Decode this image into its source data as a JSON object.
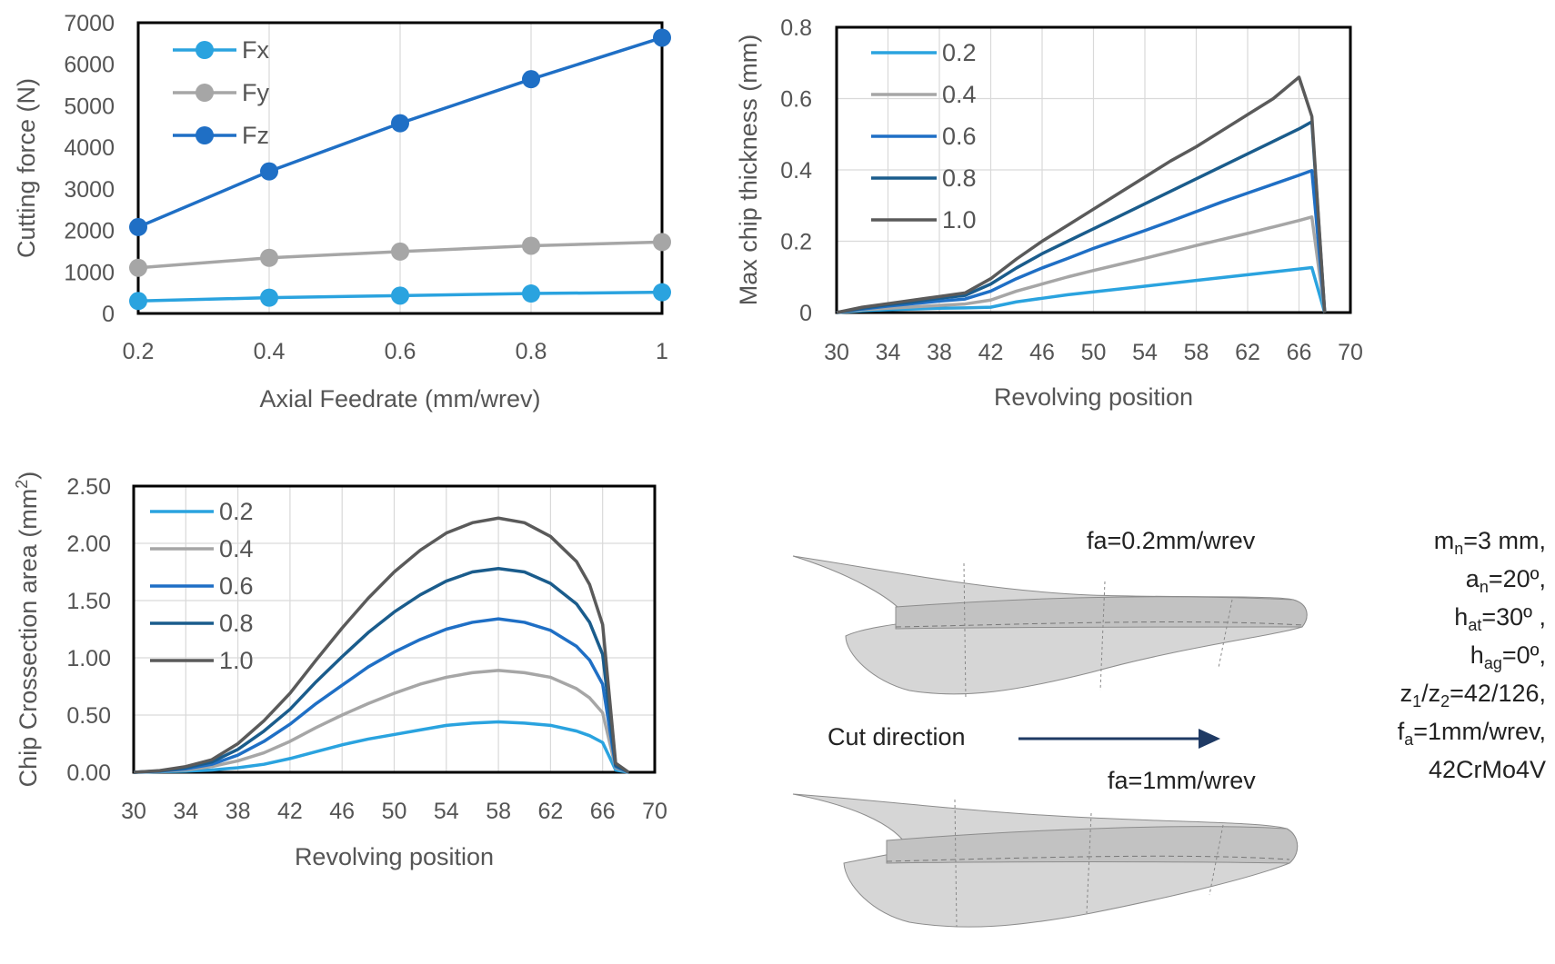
{
  "chart_data": [
    {
      "type": "line",
      "xlabel": "Axial Feedrate (mm/wrev)",
      "ylabel": "Cutting force (N)",
      "x": [
        0.2,
        0.4,
        0.6,
        0.8,
        1
      ],
      "x_tick_labels": [
        "0.2",
        "0.4",
        "0.6",
        "0.8",
        "1"
      ],
      "xlim": [
        0.2,
        1
      ],
      "ylim": [
        0,
        7000
      ],
      "y_ticks": [
        0,
        1000,
        2000,
        3000,
        4000,
        5000,
        6000,
        7000
      ],
      "grid": true,
      "legend": "top-left",
      "series": [
        {
          "name": "Fx",
          "color": "#2aa3df",
          "values": [
            300,
            380,
            430,
            480,
            510
          ]
        },
        {
          "name": "Fy",
          "color": "#a6a6a6",
          "values": [
            1100,
            1340,
            1490,
            1630,
            1720
          ]
        },
        {
          "name": "Fz",
          "color": "#1f6fc5",
          "values": [
            2080,
            3420,
            4580,
            5640,
            6640
          ]
        }
      ]
    },
    {
      "type": "line",
      "xlabel": "Revolving position",
      "ylabel": "Max chip thickness (mm)",
      "x": [
        30,
        32,
        34,
        36,
        38,
        40,
        42,
        44,
        46,
        48,
        50,
        52,
        54,
        56,
        58,
        60,
        62,
        64,
        66,
        67,
        68
      ],
      "x_ticks": [
        30,
        34,
        38,
        42,
        46,
        50,
        54,
        58,
        62,
        66,
        70
      ],
      "xlim": [
        30,
        70
      ],
      "ylim": [
        0,
        0.8
      ],
      "y_ticks": [
        0,
        0.2,
        0.4,
        0.6,
        0.8
      ],
      "y_tick_labels": [
        "0",
        "0.2",
        "0.4",
        "0.6",
        "0.8"
      ],
      "grid": true,
      "legend": "top-left",
      "series": [
        {
          "name": "0.2",
          "color": "#2aa3df",
          "values": [
            0.0,
            0.005,
            0.008,
            0.01,
            0.012,
            0.013,
            0.015,
            0.03,
            0.04,
            0.05,
            0.058,
            0.066,
            0.074,
            0.082,
            0.09,
            0.098,
            0.106,
            0.114,
            0.122,
            0.126,
            0.0
          ]
        },
        {
          "name": "0.4",
          "color": "#a6a6a6",
          "values": [
            0.0,
            0.008,
            0.012,
            0.016,
            0.02,
            0.024,
            0.035,
            0.06,
            0.08,
            0.1,
            0.118,
            0.135,
            0.152,
            0.17,
            0.188,
            0.205,
            0.222,
            0.24,
            0.258,
            0.268,
            0.0
          ]
        },
        {
          "name": "0.6",
          "color": "#1f6fc5",
          "values": [
            0.0,
            0.01,
            0.018,
            0.025,
            0.032,
            0.038,
            0.06,
            0.095,
            0.125,
            0.152,
            0.18,
            0.205,
            0.23,
            0.256,
            0.283,
            0.31,
            0.335,
            0.36,
            0.385,
            0.398,
            0.0
          ]
        },
        {
          "name": "0.8",
          "color": "#1a5c8c",
          "values": [
            0.0,
            0.012,
            0.022,
            0.03,
            0.04,
            0.048,
            0.08,
            0.125,
            0.165,
            0.2,
            0.235,
            0.27,
            0.305,
            0.34,
            0.375,
            0.41,
            0.445,
            0.48,
            0.515,
            0.535,
            0.0
          ]
        },
        {
          "name": "1.0",
          "color": "#5a5a5a",
          "values": [
            0.0,
            0.015,
            0.025,
            0.035,
            0.045,
            0.055,
            0.095,
            0.15,
            0.2,
            0.245,
            0.29,
            0.335,
            0.38,
            0.425,
            0.465,
            0.51,
            0.555,
            0.6,
            0.66,
            0.55,
            0.0
          ]
        }
      ]
    },
    {
      "type": "line",
      "xlabel": "Revolving position",
      "ylabel": "Chip Crossection area (mm",
      "ylabel_sup": "2",
      "ylabel_end": ")",
      "x": [
        30,
        32,
        34,
        36,
        38,
        40,
        42,
        44,
        46,
        48,
        50,
        52,
        54,
        56,
        58,
        60,
        62,
        64,
        65,
        66,
        67,
        68
      ],
      "x_ticks": [
        30,
        34,
        38,
        42,
        46,
        50,
        54,
        58,
        62,
        66,
        70
      ],
      "xlim": [
        30,
        70
      ],
      "ylim": [
        0,
        2.5
      ],
      "y_ticks": [
        0,
        0.5,
        1.0,
        1.5,
        2.0,
        2.5
      ],
      "y_tick_labels": [
        "0.00",
        "0.50",
        "1.00",
        "1.50",
        "2.00",
        "2.50"
      ],
      "grid": true,
      "legend": "top-left",
      "series": [
        {
          "name": "0.2",
          "color": "#2aa3df",
          "values": [
            0.0,
            0.005,
            0.01,
            0.02,
            0.04,
            0.07,
            0.12,
            0.18,
            0.24,
            0.29,
            0.33,
            0.37,
            0.41,
            0.43,
            0.44,
            0.43,
            0.41,
            0.36,
            0.32,
            0.26,
            0.02,
            0.0
          ]
        },
        {
          "name": "0.4",
          "color": "#a6a6a6",
          "values": [
            0.0,
            0.008,
            0.02,
            0.05,
            0.1,
            0.17,
            0.27,
            0.39,
            0.5,
            0.6,
            0.69,
            0.77,
            0.83,
            0.87,
            0.89,
            0.87,
            0.83,
            0.73,
            0.65,
            0.52,
            0.04,
            0.0
          ]
        },
        {
          "name": "0.6",
          "color": "#1f6fc5",
          "values": [
            0.0,
            0.01,
            0.03,
            0.07,
            0.15,
            0.27,
            0.42,
            0.6,
            0.76,
            0.92,
            1.05,
            1.16,
            1.25,
            1.31,
            1.34,
            1.31,
            1.24,
            1.1,
            0.98,
            0.77,
            0.05,
            0.0
          ]
        },
        {
          "name": "0.8",
          "color": "#1a5c8c",
          "values": [
            0.0,
            0.012,
            0.04,
            0.09,
            0.2,
            0.36,
            0.55,
            0.79,
            1.01,
            1.22,
            1.4,
            1.55,
            1.67,
            1.75,
            1.78,
            1.75,
            1.65,
            1.47,
            1.31,
            1.03,
            0.06,
            0.0
          ]
        },
        {
          "name": "1.0",
          "color": "#5a5a5a",
          "values": [
            0.0,
            0.015,
            0.05,
            0.11,
            0.25,
            0.45,
            0.69,
            0.98,
            1.26,
            1.52,
            1.75,
            1.94,
            2.09,
            2.18,
            2.22,
            2.18,
            2.06,
            1.84,
            1.64,
            1.29,
            0.08,
            0.0
          ]
        }
      ]
    }
  ],
  "illustration": {
    "caption_top": "fa=0.2mm/wrev",
    "cut_direction": "Cut direction",
    "caption_bottom": "fa=1mm/wrev",
    "arrow_color": "#1f3a64",
    "params": [
      {
        "base": "m",
        "sub": "n",
        "rest": "=3 mm,"
      },
      {
        "base": "a",
        "sub": "n",
        "rest": "=20º,"
      },
      {
        "base": "h",
        "sub": "at",
        "rest": "=30º ,"
      },
      {
        "base": "h",
        "sub": "ag",
        "rest": "=0º,"
      },
      {
        "base": "z",
        "sub": "1",
        "rest": "/z",
        "sub2": "2",
        "rest2": "=42/126,"
      },
      {
        "base": "f",
        "sub": "a",
        "rest": "=1mm/wrev,"
      },
      {
        "base": "42CrMo4V",
        "sub": "",
        "rest": ""
      }
    ]
  }
}
